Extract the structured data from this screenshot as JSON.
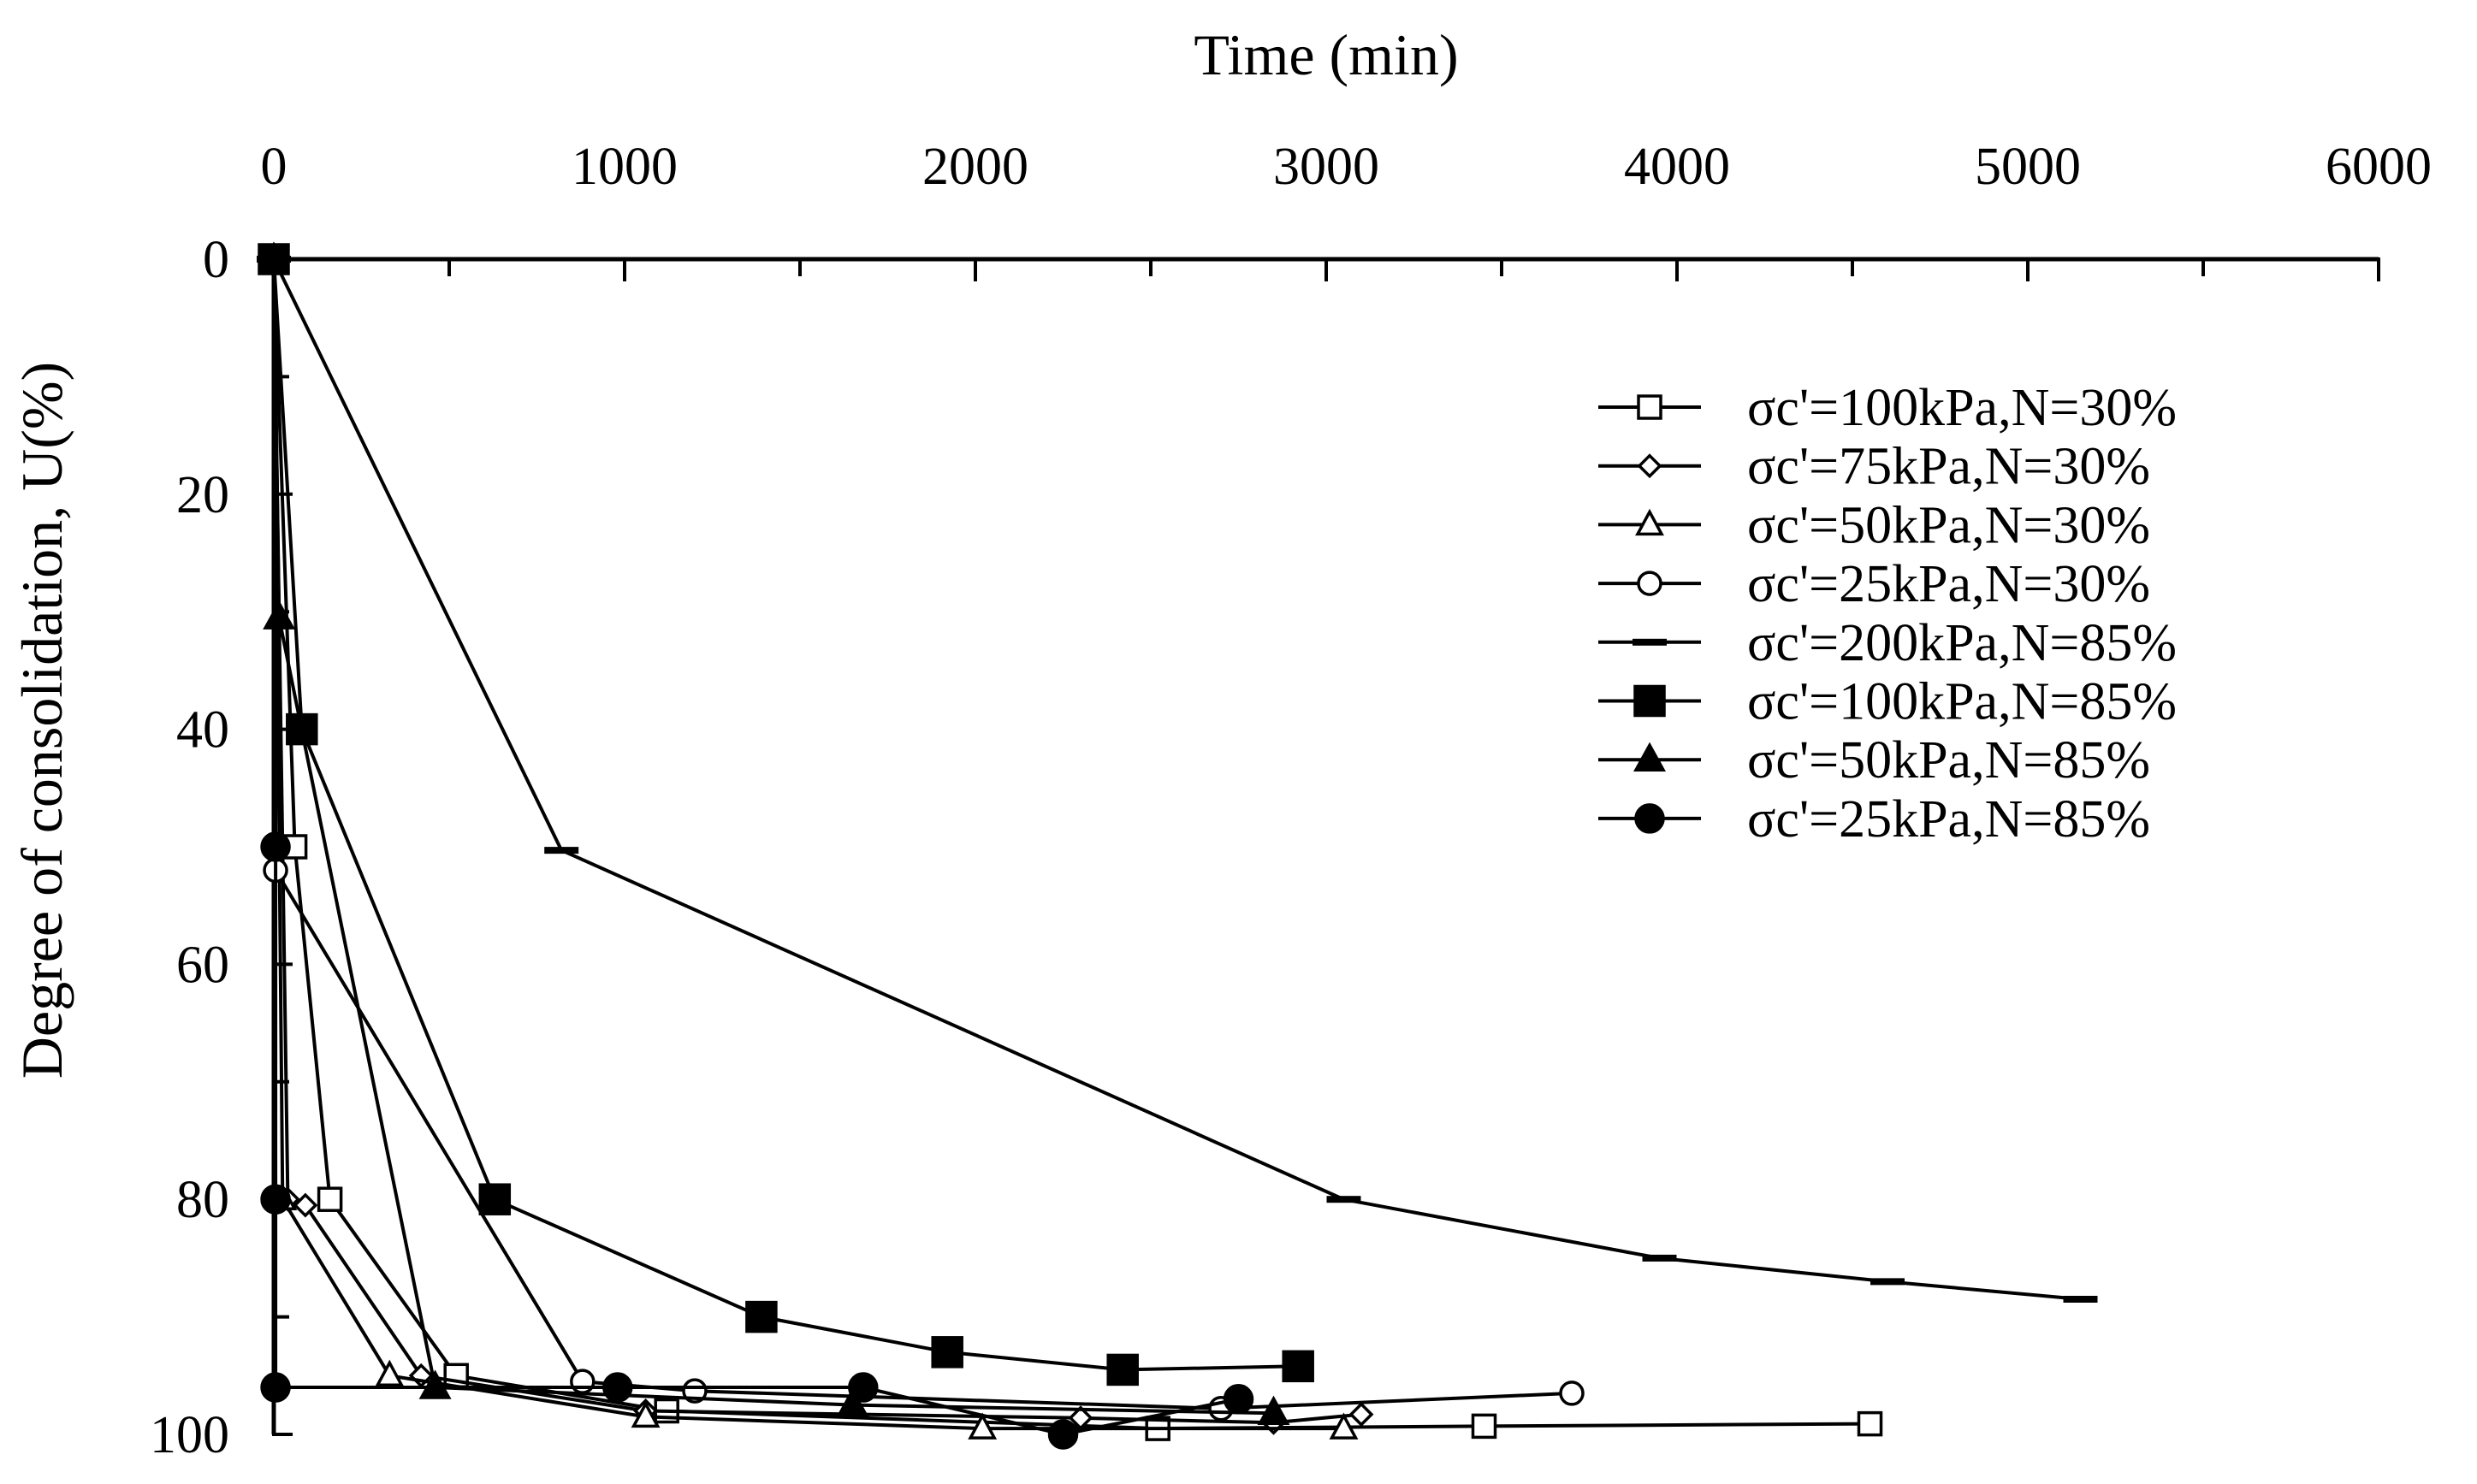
{
  "chart_data": {
    "type": "line",
    "xlabel": "Time (min)",
    "ylabel": "Degree of consolidation, U(%)",
    "xlim": [
      0,
      6000
    ],
    "ylim": [
      0,
      100
    ],
    "y_inverted": true,
    "x_axis_position": "top",
    "xticks": [
      0,
      1000,
      2000,
      3000,
      4000,
      5000,
      6000
    ],
    "xtick_labels": [
      "0",
      "1000",
      "2000",
      "3000",
      "4000",
      "5000",
      "6000"
    ],
    "yticks": [
      0,
      20,
      40,
      60,
      80,
      100
    ],
    "ytick_labels": [
      "0",
      "20",
      "40",
      "60",
      "80",
      "100"
    ],
    "legend_position": "right",
    "series": [
      {
        "name": "σc'=100kPa,N=30%",
        "marker": "square-open",
        "x": [
          0,
          60,
          160,
          520,
          1120,
          2520,
          3450,
          4550
        ],
        "y": [
          0,
          50,
          80,
          95,
          98,
          99.5,
          99.3,
          99.1
        ]
      },
      {
        "name": "σc'=75kPa,N=30%",
        "marker": "diamond-open",
        "x": [
          0,
          40,
          90,
          420,
          1060,
          2300,
          2850,
          3100
        ],
        "y": [
          0,
          80,
          80.5,
          95,
          98,
          98.6,
          99,
          98.3
        ]
      },
      {
        "name": "σc'=50kPa,N=30%",
        "marker": "triangle-open",
        "x": [
          0,
          25,
          330,
          1060,
          2020,
          3050
        ],
        "y": [
          0,
          80,
          95,
          98.5,
          99.5,
          99.5
        ]
      },
      {
        "name": "σc'=25kPa,N=30%",
        "marker": "circle-open",
        "x": [
          0,
          5,
          880,
          1200,
          2700,
          3700
        ],
        "y": [
          0,
          52,
          95.5,
          96.3,
          97.8,
          96.5
        ]
      },
      {
        "name": "σc'=200kPa,N=85%",
        "marker": "dash",
        "x": [
          0,
          820,
          3050,
          3950,
          4600,
          5150
        ],
        "y": [
          0,
          50.3,
          80,
          85,
          87,
          88.5
        ]
      },
      {
        "name": "σc'=100kPa,N=85%",
        "marker": "square-filled",
        "x": [
          0,
          80,
          630,
          1390,
          1920,
          2420,
          2920
        ],
        "y": [
          0,
          40,
          80,
          90,
          93,
          94.5,
          94.2
        ]
      },
      {
        "name": "σc'=50kPa,N=85%",
        "marker": "triangle-filled",
        "x": [
          0,
          15,
          460,
          1650,
          2850
        ],
        "y": [
          0,
          30.5,
          96,
          97.5,
          98.2
        ]
      },
      {
        "name": "σc'=25kPa,N=85%",
        "marker": "circle-filled",
        "x": [
          0,
          5,
          5,
          5,
          980,
          1680,
          2250,
          2750
        ],
        "y": [
          0,
          50,
          80,
          96,
          96,
          96,
          100,
          97
        ]
      }
    ]
  }
}
